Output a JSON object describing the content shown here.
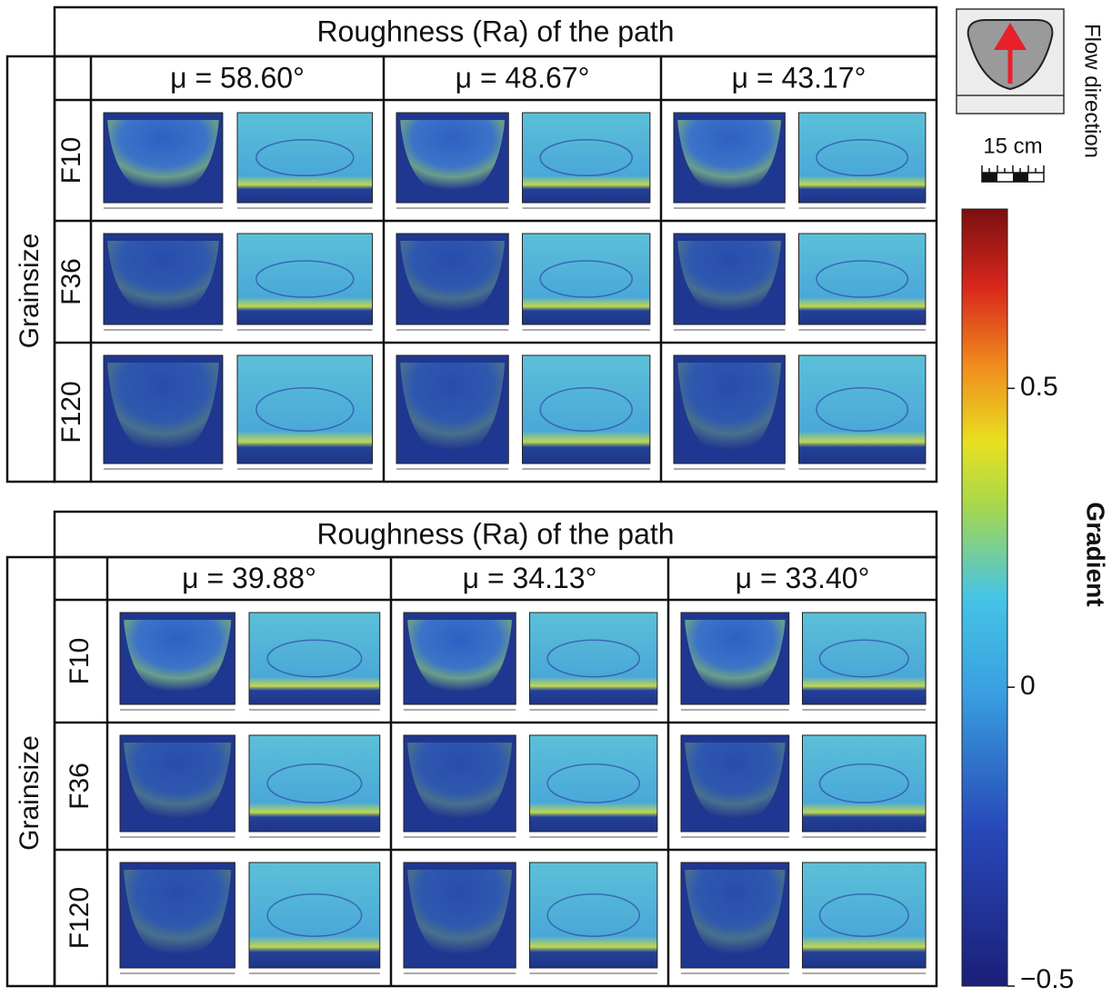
{
  "figure": {
    "tables": [
      {
        "title": "Roughness (Ra) of the path",
        "row_header": "Grainsize",
        "columns": [
          "μ = 58.60°",
          "μ = 48.67°",
          "μ = 43.17°"
        ],
        "rows": [
          "F10",
          "F36",
          "F120"
        ]
      },
      {
        "title": "Roughness (Ra) of the path",
        "row_header": "Grainsize",
        "columns": [
          "μ = 39.88°",
          "μ = 34.13°",
          "μ = 33.40°"
        ],
        "rows": [
          "F10",
          "F36",
          "F120"
        ]
      }
    ],
    "inset": {
      "label": "Flow direction",
      "scale": "15 cm"
    },
    "colorbar": {
      "label": "Gradient",
      "lim": [
        -0.5,
        0.8
      ],
      "ticks": [
        0.5,
        0,
        {
          "value": -0.5,
          "label": "−0.5"
        }
      ]
    }
  }
}
